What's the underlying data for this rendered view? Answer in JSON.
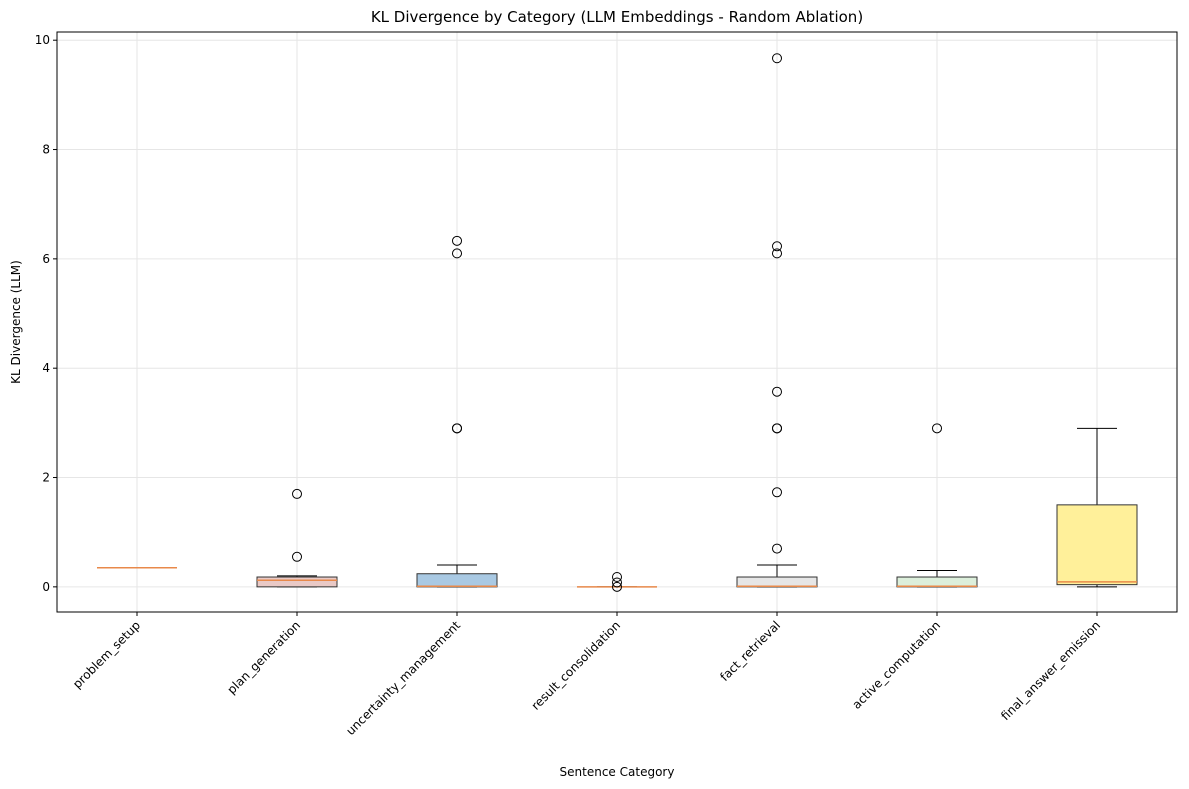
{
  "chart_data": {
    "type": "box",
    "title": "KL Divergence by Category (LLM Embeddings - Random Ablation)",
    "xlabel": "Sentence Category",
    "ylabel": "KL Divergence (LLM)",
    "categories": [
      "problem_setup",
      "plan_generation",
      "uncertainty_management",
      "result_consolidation",
      "fact_retrieval",
      "active_computation",
      "final_answer_emission"
    ],
    "boxes": [
      {
        "whislo": 0.35,
        "q1": 0.35,
        "med": 0.35,
        "q3": 0.35,
        "whishi": 0.35,
        "fliers": []
      },
      {
        "whislo": 0,
        "q1": 0,
        "med": 0.12,
        "q3": 0.18,
        "whishi": 0.2,
        "fliers": [
          0.55,
          1.7
        ]
      },
      {
        "whislo": 0,
        "q1": 0,
        "med": 0.01,
        "q3": 0.24,
        "whishi": 0.4,
        "fliers": [
          2.9,
          2.9,
          6.1,
          6.33
        ]
      },
      {
        "whislo": 0,
        "q1": 0,
        "med": 0,
        "q3": 0,
        "whishi": 0,
        "fliers": [
          0.18,
          0.08,
          0.0
        ]
      },
      {
        "whislo": 0,
        "q1": 0,
        "med": 0.01,
        "q3": 0.18,
        "whishi": 0.4,
        "fliers": [
          0.7,
          1.73,
          2.9,
          2.9,
          3.57,
          6.1,
          6.23,
          9.67
        ]
      },
      {
        "whislo": 0,
        "q1": 0,
        "med": 0.01,
        "q3": 0.18,
        "whishi": 0.3,
        "fliers": [
          2.9
        ]
      },
      {
        "whislo": 0,
        "q1": 0.04,
        "med": 0.09,
        "q3": 1.5,
        "whishi": 2.9,
        "fliers": []
      }
    ],
    "colors": [
      "#f4c9c4",
      "#e9c9c6",
      "#a9c9e3",
      "#d6ecd2",
      "#e6e6e6",
      "#dcefdb",
      "#fff09a"
    ],
    "median_color": "#e8894a",
    "ylim": [
      -0.46,
      10.15
    ],
    "yticks": [
      0,
      2,
      4,
      6,
      8,
      10
    ],
    "grid": true
  }
}
